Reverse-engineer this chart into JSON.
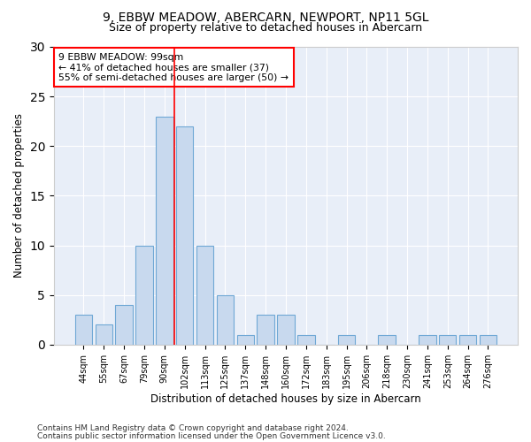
{
  "title1": "9, EBBW MEADOW, ABERCARN, NEWPORT, NP11 5GL",
  "title2": "Size of property relative to detached houses in Abercarn",
  "xlabel": "Distribution of detached houses by size in Abercarn",
  "ylabel": "Number of detached properties",
  "categories": [
    "44sqm",
    "55sqm",
    "67sqm",
    "79sqm",
    "90sqm",
    "102sqm",
    "113sqm",
    "125sqm",
    "137sqm",
    "148sqm",
    "160sqm",
    "172sqm",
    "183sqm",
    "195sqm",
    "206sqm",
    "218sqm",
    "230sqm",
    "241sqm",
    "253sqm",
    "264sqm",
    "276sqm"
  ],
  "values": [
    3,
    2,
    4,
    10,
    23,
    22,
    10,
    5,
    1,
    3,
    3,
    1,
    0,
    1,
    0,
    1,
    0,
    1,
    1,
    1,
    1
  ],
  "bar_color": "#c8d9ee",
  "bar_edge_color": "#6fa8d5",
  "vline_index": 4.5,
  "annotation_text": "9 EBBW MEADOW: 99sqm\n← 41% of detached houses are smaller (37)\n55% of semi-detached houses are larger (50) →",
  "annotation_box_color": "white",
  "annotation_box_edge_color": "red",
  "vline_color": "red",
  "ylim": [
    0,
    30
  ],
  "yticks": [
    0,
    5,
    10,
    15,
    20,
    25,
    30
  ],
  "footer1": "Contains HM Land Registry data © Crown copyright and database right 2024.",
  "footer2": "Contains public sector information licensed under the Open Government Licence v3.0.",
  "bg_color": "#ffffff",
  "plot_bg_color": "#e8eef8"
}
